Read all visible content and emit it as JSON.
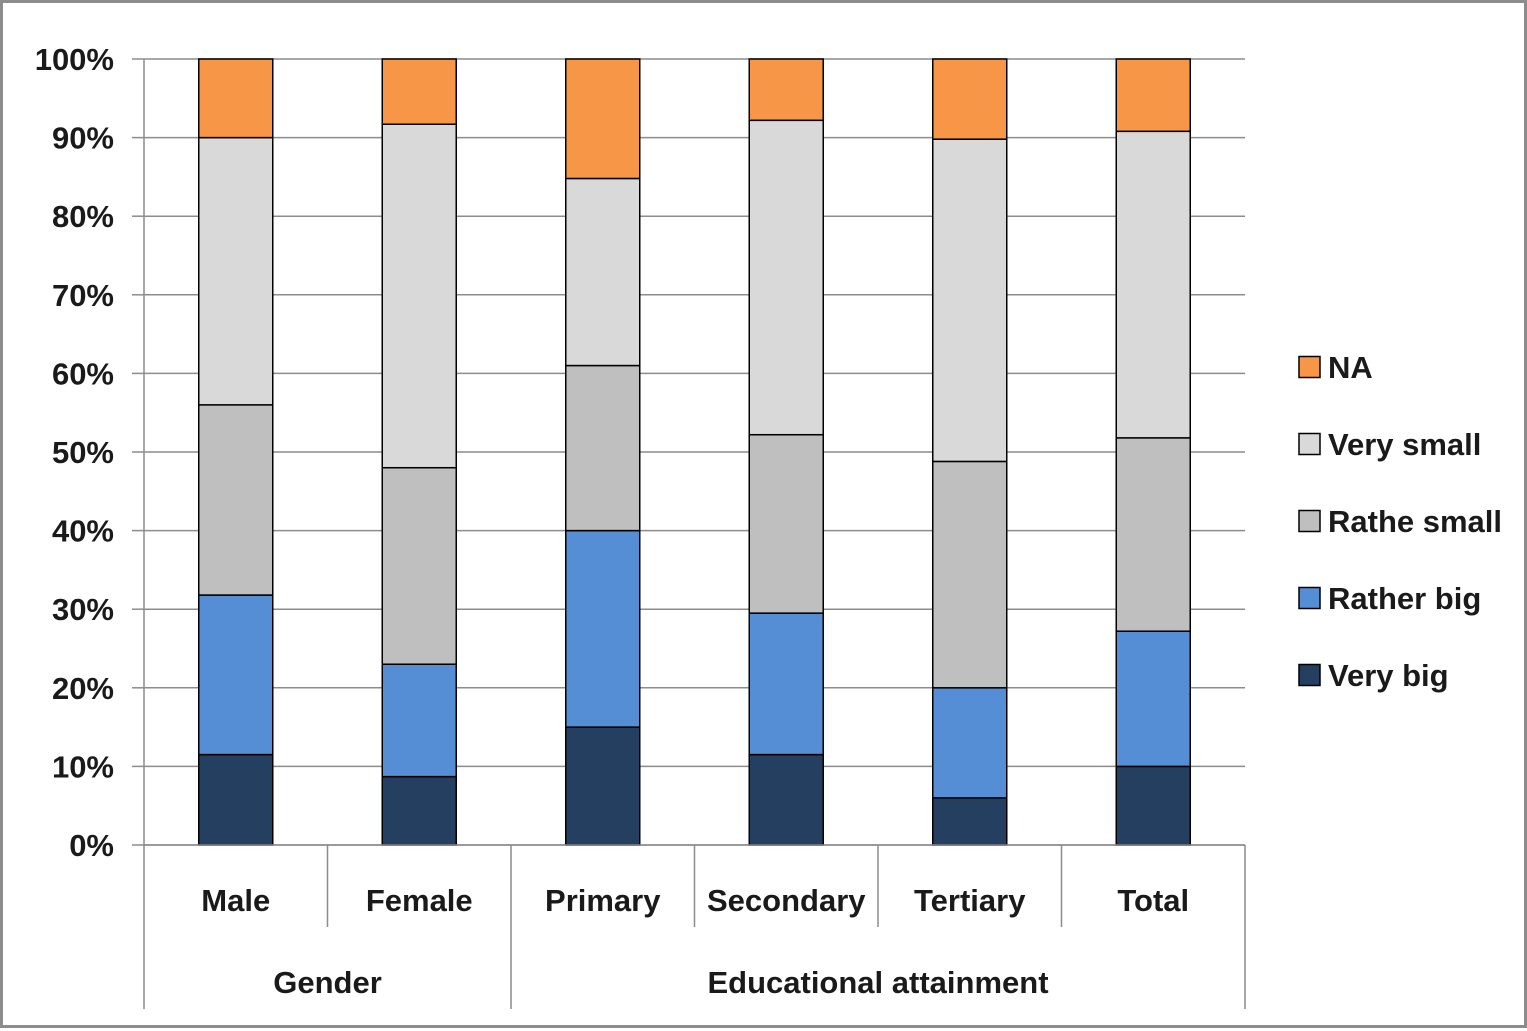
{
  "chart_data": {
    "type": "bar",
    "stacked": true,
    "categories": [
      "Male",
      "Female",
      "Primary",
      "Secondary",
      "Tertiary",
      "Total"
    ],
    "category_groups": [
      {
        "label": "Gender",
        "categories": [
          "Male",
          "Female"
        ]
      },
      {
        "label": "Educational attainment",
        "categories": [
          "Primary",
          "Secondary",
          "Tertiary",
          "Total"
        ]
      }
    ],
    "series": [
      {
        "name": "Very big",
        "color": "#243f60",
        "values": [
          11.5,
          8.7,
          15,
          11.5,
          6,
          10
        ]
      },
      {
        "name": "Rather big",
        "color": "#558ed5",
        "values": [
          20.3,
          14.3,
          25,
          18,
          14,
          17.2
        ]
      },
      {
        "name": "Rathe small",
        "color": "#bfbfbf",
        "values": [
          24.2,
          25,
          21,
          22.7,
          28.8,
          24.6
        ]
      },
      {
        "name": "Very small",
        "color": "#d9d9d9",
        "values": [
          34,
          43.7,
          23.8,
          40,
          41,
          39
        ]
      },
      {
        "name": "NA",
        "color": "#f79646",
        "values": [
          10,
          8.3,
          15.2,
          7.8,
          10.2,
          9.2
        ]
      }
    ],
    "y_ticks": [
      "0%",
      "10%",
      "20%",
      "30%",
      "40%",
      "50%",
      "60%",
      "70%",
      "80%",
      "90%",
      "100%"
    ],
    "ylim": [
      0,
      100
    ],
    "legend_order": [
      "NA",
      "Very small",
      "Rathe small",
      "Rather big",
      "Very big"
    ],
    "legend_position": "right",
    "grid": true
  }
}
